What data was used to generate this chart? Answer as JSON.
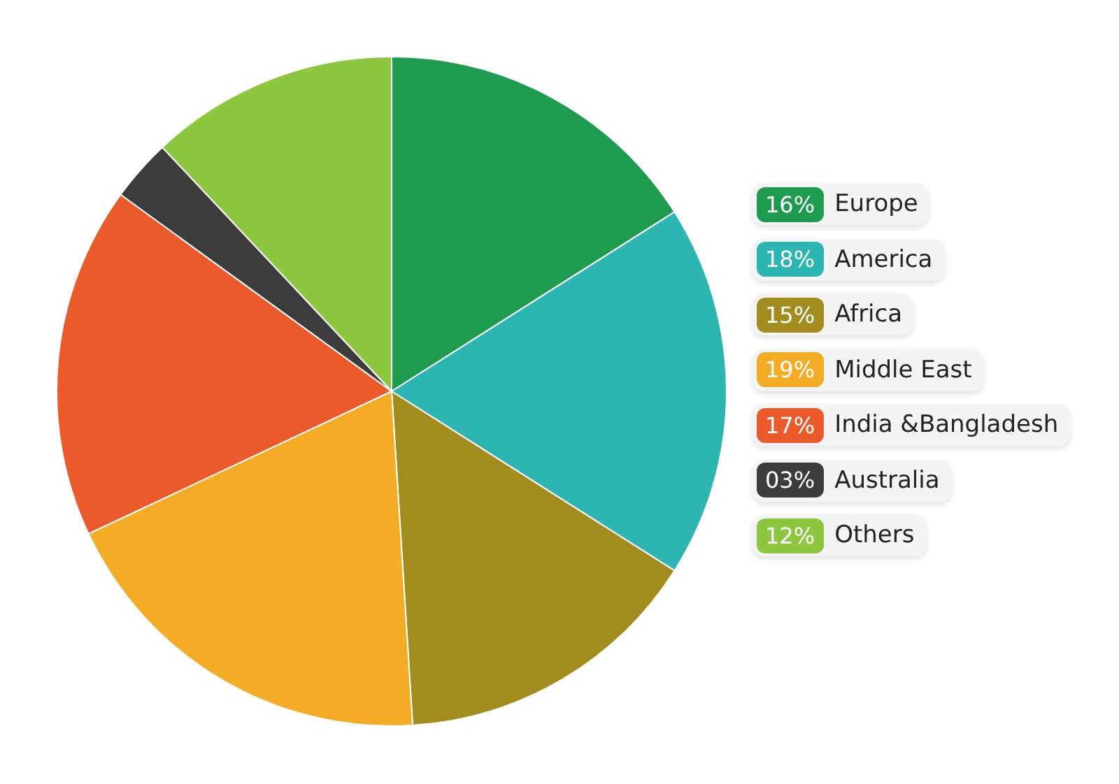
{
  "chart_data": {
    "type": "pie",
    "categories": [
      "Europe",
      "America",
      "Africa",
      "Middle East",
      "India &Bangladesh",
      "Australia",
      "Others"
    ],
    "values": [
      16,
      18,
      15,
      19,
      17,
      3,
      12
    ],
    "value_labels": [
      "16%",
      "18%",
      "15%",
      "19%",
      "17%",
      "03%",
      "12%"
    ],
    "colors": [
      "#1f9b50",
      "#2db6b1",
      "#a18c1d",
      "#f4ab26",
      "#eb5a2b",
      "#3c3c3c",
      "#8dc63f"
    ],
    "legend": "right"
  }
}
